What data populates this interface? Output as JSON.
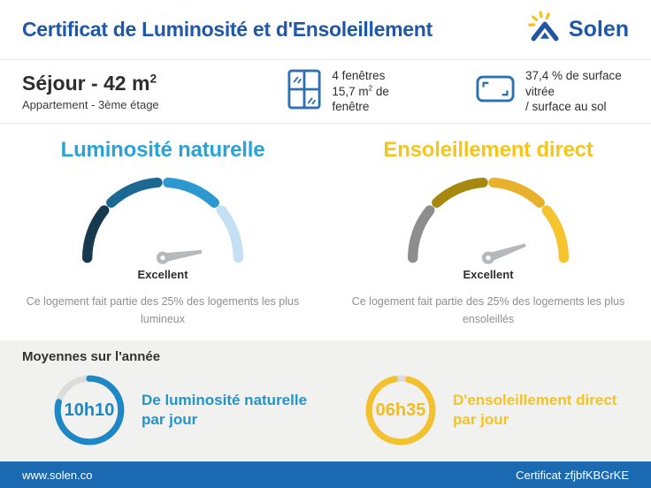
{
  "header": {
    "title": "Certificat de Luminosité et d'Ensoleillement",
    "brand": "Solen"
  },
  "property": {
    "title": "Séjour - 42 m",
    "title_sup": "2",
    "subtitle": "Appartement - 3ème étage",
    "windows_line1": "4 fenêtres",
    "windows_line2_pre": "15,7 m",
    "windows_line2_sup": "2",
    "windows_line2_post": " de fenêtre",
    "glazing_line1": "37,4 % de surface vitrée",
    "glazing_line2": "/ surface au sol"
  },
  "gauges": {
    "left": {
      "title": "Luminosité naturelle",
      "title_color": "#29a4d9",
      "rating": "Excellent",
      "description": "Ce logement fait partie des 25% des logements les plus lumineux",
      "segment_colors": [
        "#17394f",
        "#1b6892",
        "#2c98d0",
        "#c5e0f2"
      ],
      "needle_angle": -9
    },
    "right": {
      "title": "Ensoleillement direct",
      "title_color": "#f6c51c",
      "rating": "Excellent",
      "description": "Ce logement fait partie des 25% des logements les plus ensoleillés",
      "segment_colors": [
        "#8d8d8d",
        "#a6880e",
        "#e9b02b",
        "#f6c42e"
      ],
      "needle_angle": -19
    }
  },
  "averages": {
    "title": "Moyennes sur l'année",
    "left": {
      "value": "10h10",
      "label_line1": "De luminosité naturelle",
      "label_line2": "par jour",
      "ring_color": "#1e88c7",
      "ring_percent": 79
    },
    "right": {
      "value": "06h35",
      "label_line1": "D'ensoleillement direct",
      "label_line2": "par jour",
      "ring_color": "#f3c12d",
      "ring_percent": 93
    }
  },
  "footer": {
    "site": "www.solen.co",
    "certificate": "Certificat zfjbfKBGrKE"
  }
}
